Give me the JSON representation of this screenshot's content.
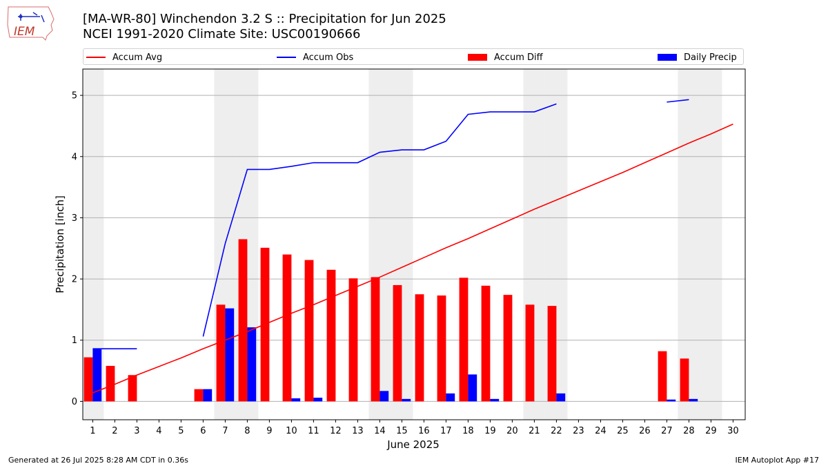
{
  "header": {
    "title_line1": "[MA-WR-80] Winchendon 3.2 S :: Precipitation for Jun 2025",
    "title_line2": "NCEI 1991-2020 Climate Site: USC00190666"
  },
  "logo": {
    "text": "IEM"
  },
  "legend": {
    "items": [
      {
        "label": "Accum Avg",
        "color": "#ff0000",
        "kind": "line"
      },
      {
        "label": "Accum Obs",
        "color": "#0000ff",
        "kind": "line"
      },
      {
        "label": "Accum Diff",
        "color": "#ff0000",
        "kind": "bar"
      },
      {
        "label": "Daily Precip",
        "color": "#0000ff",
        "kind": "bar"
      }
    ]
  },
  "footer": {
    "left": "Generated at 26 Jul 2025 8:28 AM CDT in 0.36s",
    "right": "IEM Autoplot App #17"
  },
  "chart_data": {
    "type": "bar",
    "xlabel": "June 2025",
    "ylabel": "Precipitation [inch]",
    "xlim": [
      0.55,
      30.55
    ],
    "ylim": [
      -0.3,
      5.43
    ],
    "yticks": [
      0,
      1,
      2,
      3,
      4,
      5
    ],
    "x": [
      1,
      2,
      3,
      4,
      5,
      6,
      7,
      8,
      9,
      10,
      11,
      12,
      13,
      14,
      15,
      16,
      17,
      18,
      19,
      20,
      21,
      22,
      23,
      24,
      25,
      26,
      27,
      28,
      29,
      30
    ],
    "grid": "horizontal",
    "weekend_days": [
      1,
      7,
      8,
      14,
      15,
      21,
      22,
      28,
      29
    ],
    "weekend_color": "#eeeeee",
    "series": [
      {
        "name": "Accum Avg",
        "type": "line",
        "color": "#ff0000",
        "values": [
          0.14,
          0.28,
          0.43,
          0.57,
          0.71,
          0.86,
          1.0,
          1.14,
          1.29,
          1.44,
          1.58,
          1.73,
          1.88,
          2.03,
          2.19,
          2.35,
          2.51,
          2.66,
          2.82,
          2.98,
          3.14,
          3.29,
          3.44,
          3.59,
          3.74,
          3.9,
          4.06,
          4.22,
          4.37,
          4.53
        ]
      },
      {
        "name": "Accum Obs",
        "type": "line",
        "color": "#0000ff",
        "values": [
          0.86,
          0.86,
          0.86,
          null,
          null,
          1.06,
          2.58,
          3.79,
          3.79,
          3.84,
          3.9,
          3.9,
          3.9,
          4.07,
          4.11,
          4.11,
          4.25,
          4.69,
          4.73,
          4.73,
          4.73,
          4.86,
          null,
          null,
          null,
          null,
          4.89,
          4.93,
          null,
          null
        ]
      },
      {
        "name": "Accum Diff",
        "type": "bar",
        "color": "#ff0000",
        "values": [
          0.72,
          0.58,
          0.43,
          null,
          null,
          0.2,
          1.58,
          2.65,
          2.51,
          2.4,
          2.31,
          2.15,
          2.01,
          2.03,
          1.9,
          1.75,
          1.73,
          2.02,
          1.89,
          1.74,
          1.58,
          1.56,
          null,
          null,
          null,
          null,
          0.82,
          0.7,
          null,
          null
        ]
      },
      {
        "name": "Daily Precip",
        "type": "bar",
        "color": "#0000ff",
        "values": [
          0.86,
          0,
          0,
          null,
          null,
          0.2,
          1.52,
          1.21,
          0,
          0.05,
          0.06,
          0,
          0,
          0.17,
          0.04,
          0,
          0.13,
          0.44,
          0.04,
          0,
          0,
          0.13,
          null,
          null,
          null,
          null,
          0.03,
          0.04,
          null,
          null
        ]
      }
    ]
  }
}
